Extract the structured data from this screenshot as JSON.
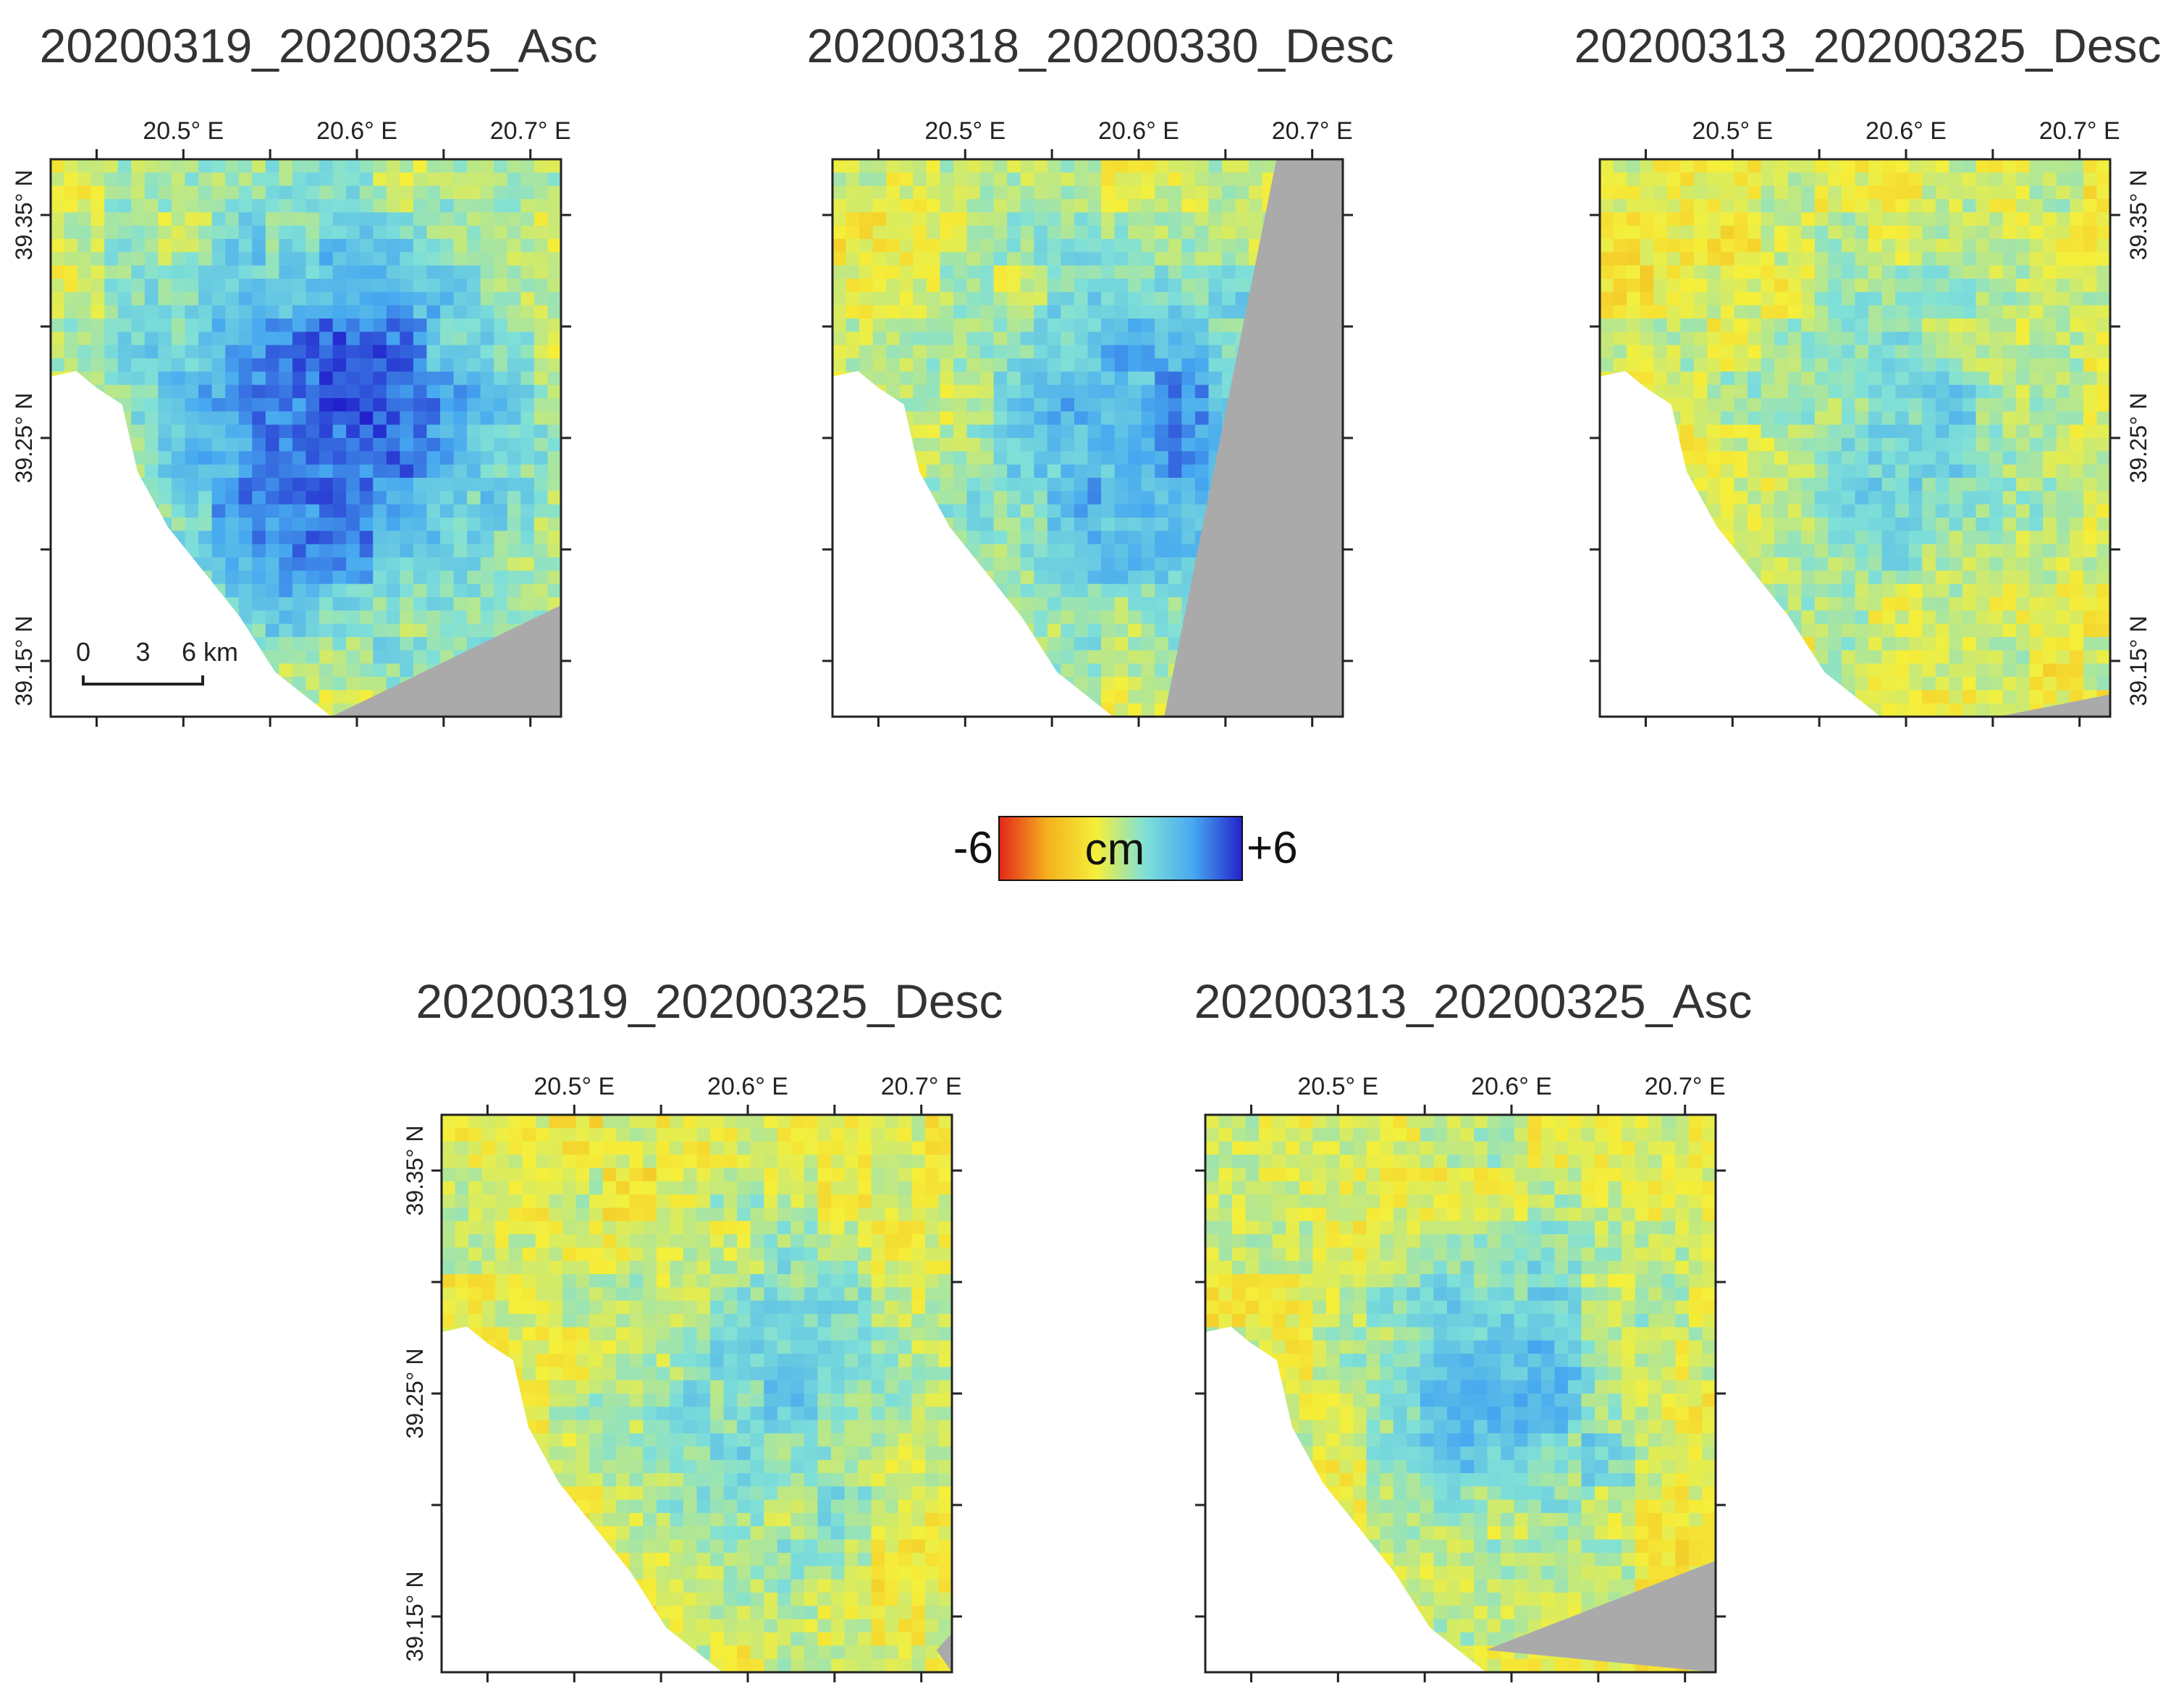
{
  "colors": {
    "ramp": [
      "#e2261a",
      "#f4b21e",
      "#f5ef3a",
      "#7fe0d8",
      "#46a8f0",
      "#2222cc"
    ],
    "nodata": "#aaaaaa",
    "frame": "#222222"
  },
  "panels": [
    {
      "id": "p1",
      "title": "20200319_20200325_Asc",
      "lat_side": "left",
      "deformation": {
        "center": [
          0.55,
          0.48
        ],
        "radius": [
          0.48,
          0.5
        ],
        "peak": 0.92
      },
      "has_scalebar": true
    },
    {
      "id": "p2",
      "title": "20200318_20200330_Desc",
      "lat_side": "none",
      "deformation": {
        "center": [
          0.62,
          0.5
        ],
        "radius": [
          0.45,
          0.45
        ],
        "peak": 0.8
      },
      "has_scalebar": false
    },
    {
      "id": "p3",
      "title": "20200313_20200325_Desc",
      "lat_side": "right",
      "deformation": {
        "center": [
          0.62,
          0.5
        ],
        "radius": [
          0.38,
          0.38
        ],
        "peak": 0.65
      },
      "has_scalebar": false
    },
    {
      "id": "p4",
      "title": "20200319_20200325_Desc",
      "lat_side": "left",
      "deformation": {
        "center": [
          0.65,
          0.5
        ],
        "radius": [
          0.35,
          0.35
        ],
        "peak": 0.68
      },
      "has_scalebar": false
    },
    {
      "id": "p5",
      "title": "20200313_20200325_Asc",
      "lat_side": "none",
      "deformation": {
        "center": [
          0.58,
          0.48
        ],
        "radius": [
          0.33,
          0.33
        ],
        "peak": 0.75
      },
      "has_scalebar": false
    }
  ],
  "lon_ticks": [
    "20.5° E",
    "20.6° E",
    "20.7° E"
  ],
  "lat_ticks": [
    "39.35° N",
    "39.25° N",
    "39.15° N"
  ],
  "scalebar": {
    "labels": [
      "0",
      "3",
      "6 km"
    ]
  },
  "colorbar": {
    "min_label": "-6",
    "max_label": "+6",
    "unit": "cm"
  }
}
